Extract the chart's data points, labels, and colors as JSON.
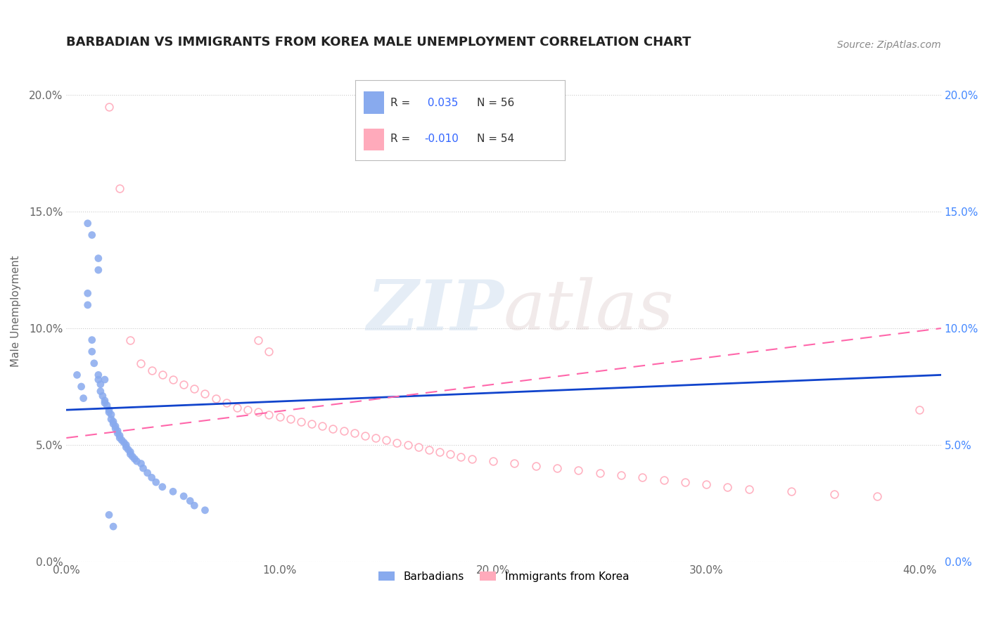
{
  "title": "BARBADIAN VS IMMIGRANTS FROM KOREA MALE UNEMPLOYMENT CORRELATION CHART",
  "source": "Source: ZipAtlas.com",
  "ylabel": "Male Unemployment",
  "xlim": [
    0.0,
    0.41
  ],
  "ylim": [
    0.0,
    0.215
  ],
  "yticks": [
    0.0,
    0.05,
    0.1,
    0.15,
    0.2
  ],
  "xticks": [
    0.0,
    0.1,
    0.2,
    0.3,
    0.4
  ],
  "color_barbadian": "#88AAEE",
  "color_korea": "#FFAABB",
  "trendline_barbadian_color": "#1144CC",
  "trendline_korea_color": "#FF66AA",
  "barbadian_x": [
    0.005,
    0.007,
    0.008,
    0.01,
    0.01,
    0.012,
    0.012,
    0.013,
    0.015,
    0.015,
    0.015,
    0.016,
    0.016,
    0.017,
    0.018,
    0.018,
    0.019,
    0.02,
    0.02,
    0.021,
    0.021,
    0.022,
    0.022,
    0.023,
    0.023,
    0.024,
    0.024,
    0.025,
    0.025,
    0.026,
    0.027,
    0.028,
    0.028,
    0.029,
    0.03,
    0.03,
    0.031,
    0.032,
    0.033,
    0.035,
    0.036,
    0.038,
    0.04,
    0.042,
    0.045,
    0.05,
    0.055,
    0.058,
    0.06,
    0.065,
    0.01,
    0.012,
    0.015,
    0.018,
    0.02,
    0.022
  ],
  "barbadian_y": [
    0.08,
    0.075,
    0.07,
    0.115,
    0.11,
    0.095,
    0.09,
    0.085,
    0.13,
    0.125,
    0.078,
    0.076,
    0.073,
    0.071,
    0.069,
    0.068,
    0.067,
    0.065,
    0.064,
    0.063,
    0.061,
    0.06,
    0.059,
    0.058,
    0.057,
    0.056,
    0.055,
    0.054,
    0.053,
    0.052,
    0.051,
    0.05,
    0.049,
    0.048,
    0.047,
    0.046,
    0.045,
    0.044,
    0.043,
    0.042,
    0.04,
    0.038,
    0.036,
    0.034,
    0.032,
    0.03,
    0.028,
    0.026,
    0.024,
    0.022,
    0.145,
    0.14,
    0.08,
    0.078,
    0.02,
    0.015
  ],
  "korea_x": [
    0.02,
    0.025,
    0.03,
    0.035,
    0.04,
    0.045,
    0.05,
    0.055,
    0.06,
    0.065,
    0.07,
    0.075,
    0.08,
    0.085,
    0.09,
    0.095,
    0.1,
    0.105,
    0.11,
    0.115,
    0.12,
    0.125,
    0.13,
    0.135,
    0.14,
    0.145,
    0.15,
    0.155,
    0.16,
    0.165,
    0.17,
    0.175,
    0.18,
    0.185,
    0.19,
    0.2,
    0.21,
    0.22,
    0.23,
    0.24,
    0.25,
    0.26,
    0.27,
    0.28,
    0.29,
    0.3,
    0.31,
    0.32,
    0.34,
    0.36,
    0.38,
    0.4,
    0.09,
    0.095
  ],
  "korea_y": [
    0.195,
    0.16,
    0.095,
    0.085,
    0.082,
    0.08,
    0.078,
    0.076,
    0.074,
    0.072,
    0.07,
    0.068,
    0.066,
    0.065,
    0.064,
    0.063,
    0.062,
    0.061,
    0.06,
    0.059,
    0.058,
    0.057,
    0.056,
    0.055,
    0.054,
    0.053,
    0.052,
    0.051,
    0.05,
    0.049,
    0.048,
    0.047,
    0.046,
    0.045,
    0.044,
    0.043,
    0.042,
    0.041,
    0.04,
    0.039,
    0.038,
    0.037,
    0.036,
    0.035,
    0.034,
    0.033,
    0.032,
    0.031,
    0.03,
    0.029,
    0.028,
    0.065,
    0.095,
    0.09
  ],
  "barb_trend_x": [
    0.0,
    0.41
  ],
  "barb_trend_y": [
    0.065,
    0.08
  ],
  "korea_trend_x": [
    0.0,
    0.41
  ],
  "korea_trend_y": [
    0.053,
    0.1
  ]
}
